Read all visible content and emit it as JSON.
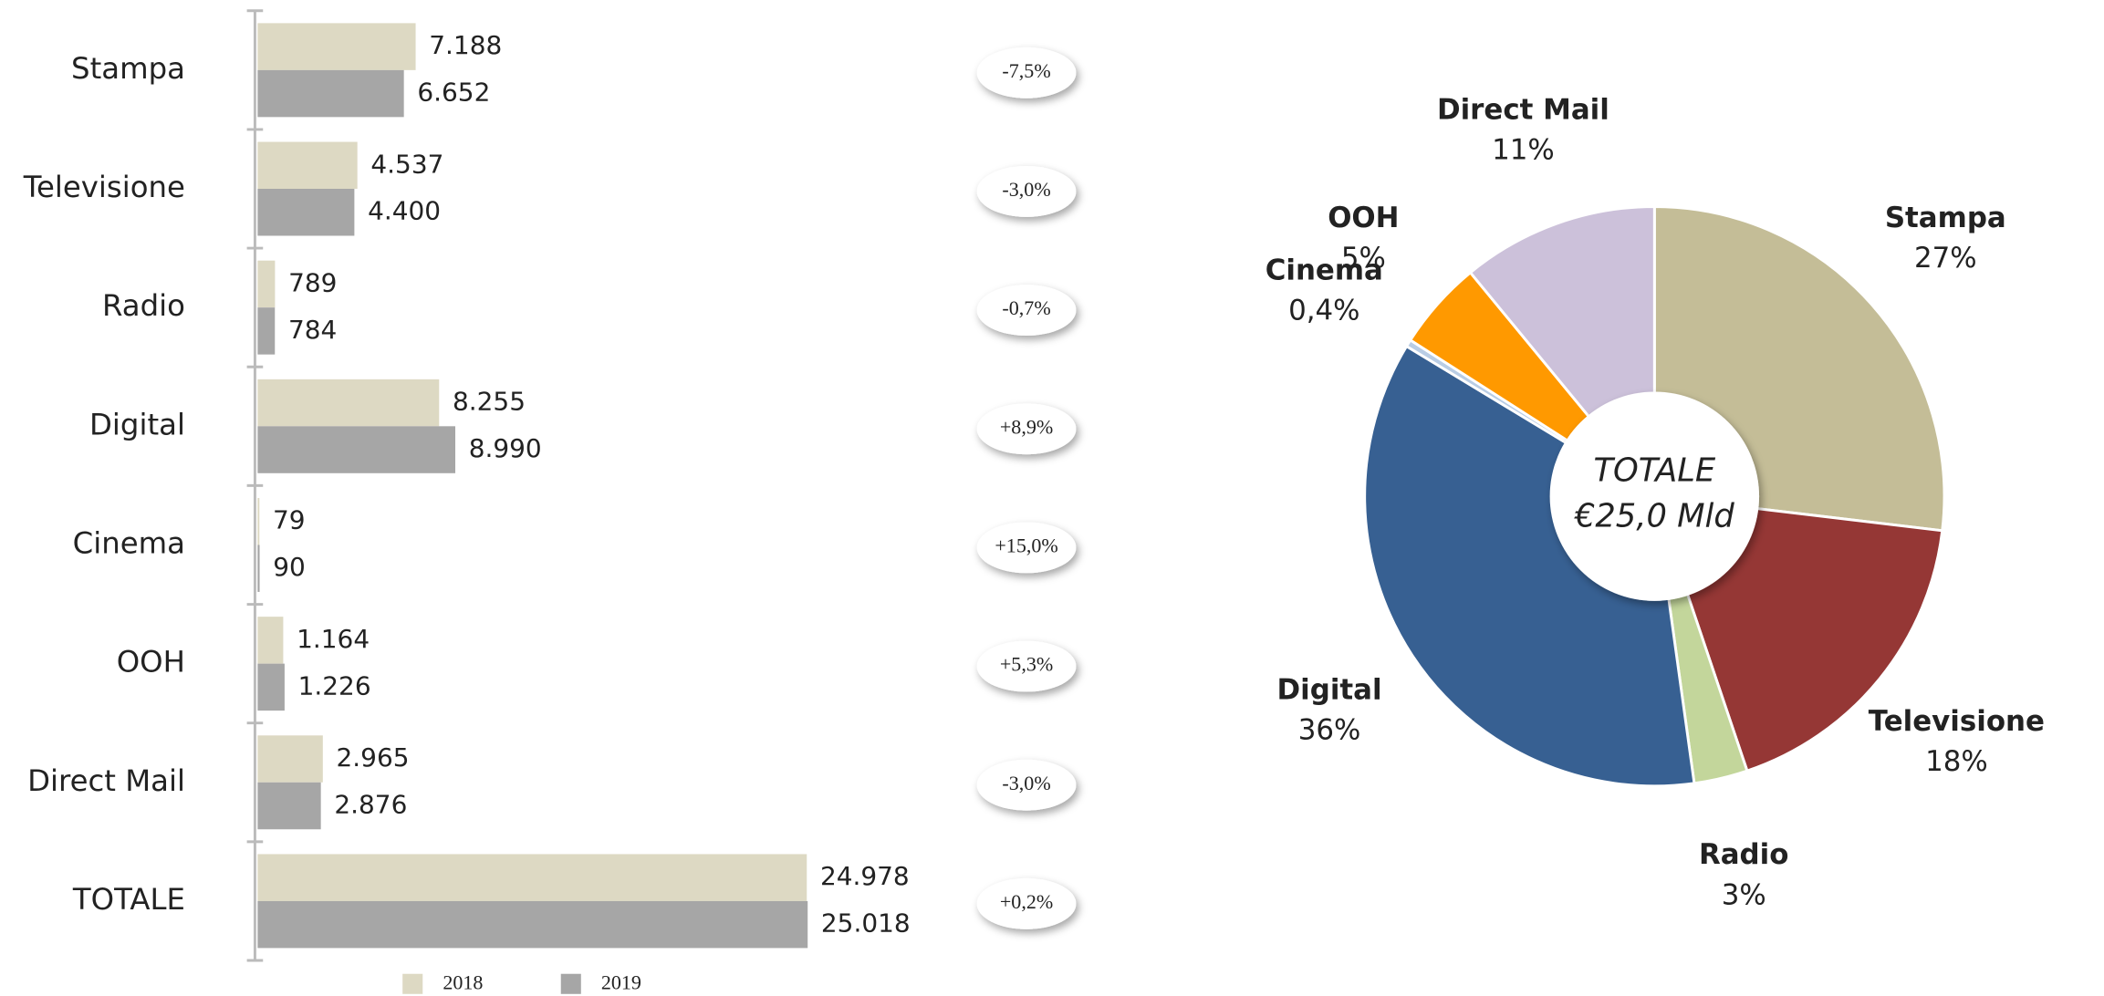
{
  "chart_data": [
    {
      "type": "bar",
      "orientation": "horizontal",
      "categories": [
        "Stampa",
        "Televisione",
        "Radio",
        "Digital",
        "Cinema",
        "OOH",
        "Direct Mail",
        "TOTALE"
      ],
      "series": [
        {
          "name": "2018",
          "color": "#ddd9c3",
          "values": [
            7188,
            4537,
            789,
            8255,
            79,
            1164,
            2965,
            24978
          ],
          "value_labels": [
            "7.188",
            "4.537",
            "789",
            "8.255",
            "79",
            "1.164",
            "2.965",
            "24.978"
          ]
        },
        {
          "name": "2019",
          "color": "#a6a6a6",
          "values": [
            6652,
            4400,
            784,
            8990,
            90,
            1226,
            2876,
            25018
          ],
          "value_labels": [
            "6.652",
            "4.400",
            "784",
            "8.990",
            "90",
            "1.226",
            "2.876",
            "25.018"
          ]
        }
      ],
      "annotations": [
        "-7,5%",
        "-3,0%",
        "-0,7%",
        "+8,9%",
        "+15,0%",
        "+5,3%",
        "-3,0%",
        "+0,2%"
      ],
      "xlim": [
        0,
        26000
      ],
      "legend": "bottom"
    },
    {
      "type": "pie",
      "categories": [
        "Stampa",
        "Televisione",
        "Radio",
        "Digital",
        "Cinema",
        "OOH",
        "Direct Mail"
      ],
      "values": [
        27,
        18,
        3,
        36,
        0.4,
        5,
        11
      ],
      "value_labels": [
        "27%",
        "18%",
        "3%",
        "36%",
        "0,4%",
        "5%",
        "11%"
      ],
      "colors": [
        "#c4bd97",
        "#953735",
        "#c3d69b",
        "#376092",
        "#b9cde5",
        "#ff9900",
        "#ccc1da"
      ],
      "center_label": [
        "TOTALE",
        "€25,0 Mld"
      ],
      "donut": true
    }
  ]
}
